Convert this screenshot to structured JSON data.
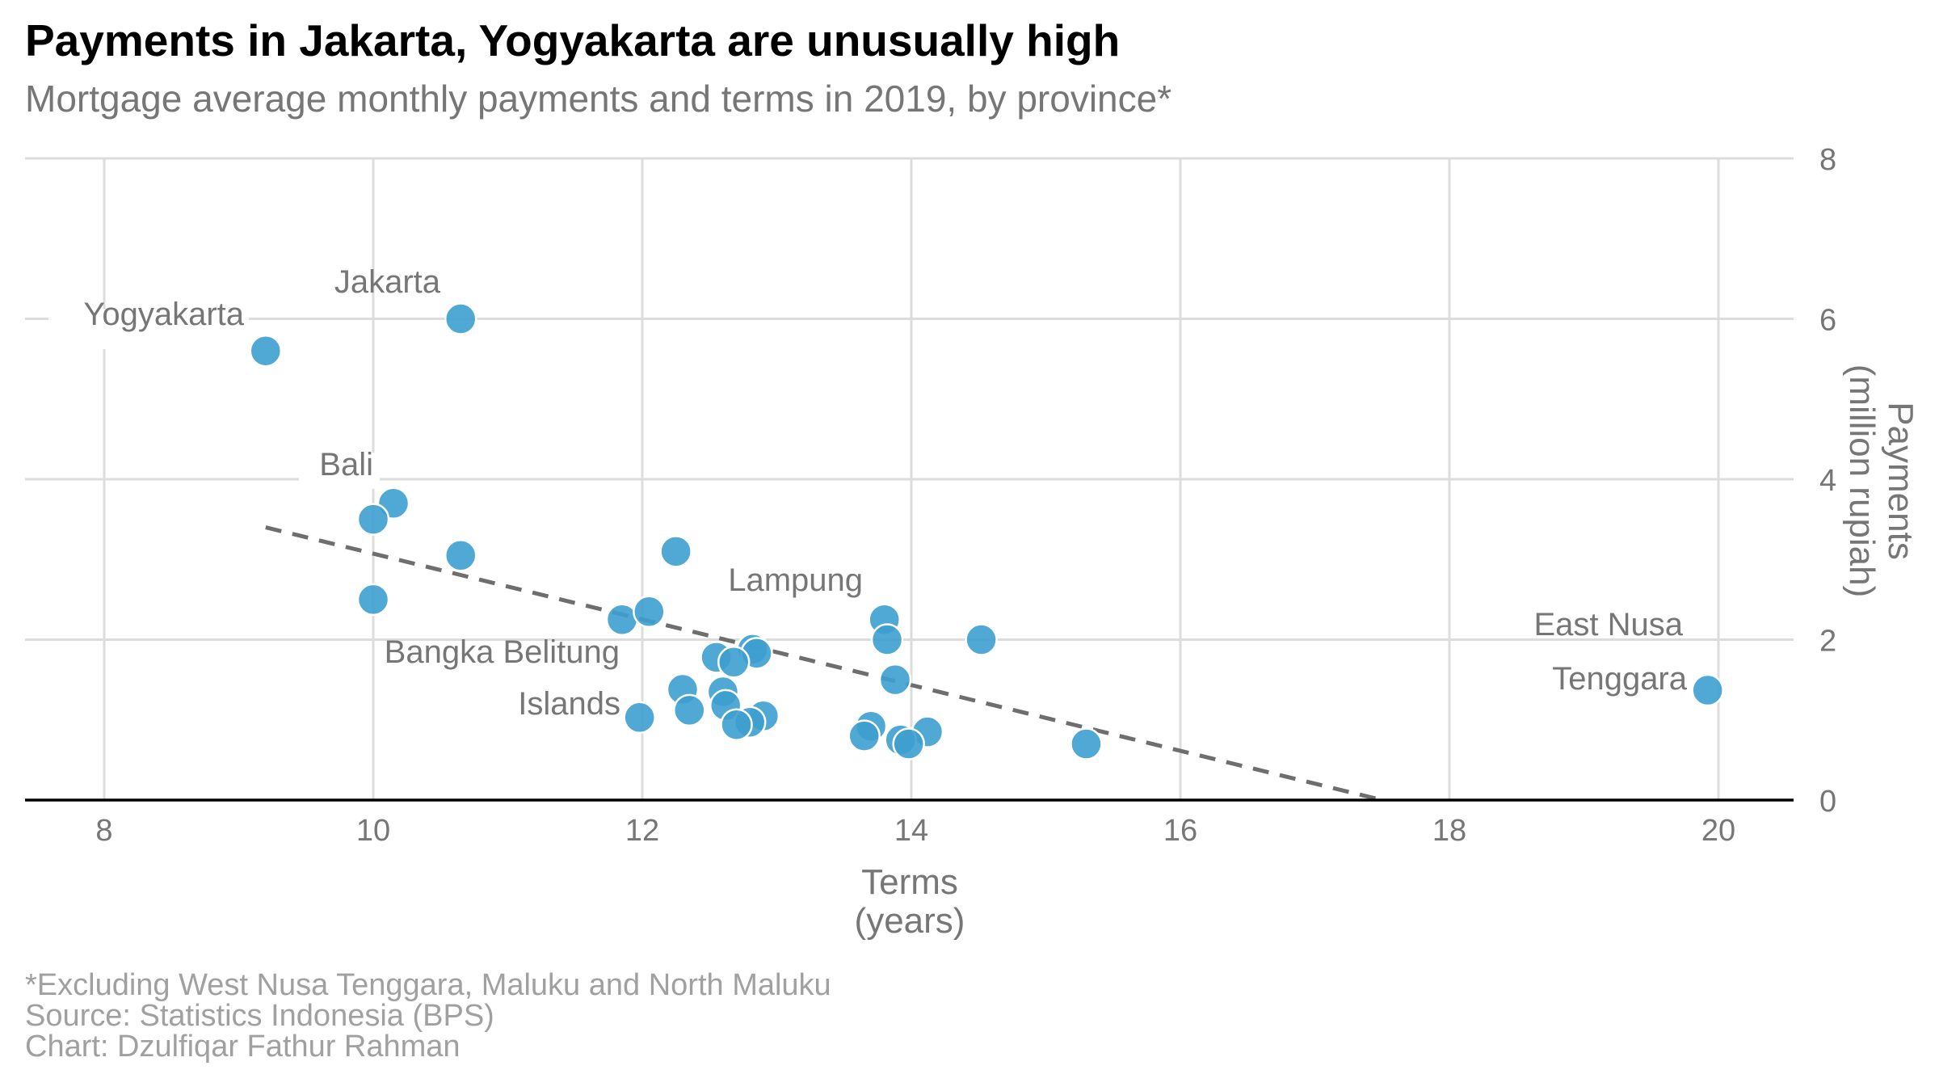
{
  "title": "Payments in Jakarta, Yogyakarta are unusually high",
  "subtitle": "Mortgage average monthly payments and terms in 2019, by province*",
  "footnotes": [
    "*Excluding West Nusa Tenggara, Maluku and North Maluku",
    "Source: Statistics Indonesia (BPS)",
    "Chart: Dzulfiqar Fathur Rahman"
  ],
  "colors": {
    "point": "#3d9fcf",
    "trend": "#6e6e6e",
    "grid": "#dcdcdc",
    "axis_text": "#767676"
  },
  "chart_data": {
    "type": "scatter",
    "title": "Payments in Jakarta, Yogyakarta are unusually high",
    "subtitle": "Mortgage average monthly payments and terms in 2019, by province*",
    "xlabel": [
      "Terms",
      "(years)"
    ],
    "ylabel": [
      "Payments",
      "(million rupiah)"
    ],
    "xlim": [
      7.4,
      20.6
    ],
    "ylim": [
      0,
      8
    ],
    "x_ticks": [
      8,
      10,
      12,
      14,
      16,
      18,
      20
    ],
    "y_ticks": [
      0,
      2,
      4,
      6,
      8
    ],
    "y_axis_position": "right",
    "grid": true,
    "points": [
      {
        "x": 10.65,
        "y": 6.0
      },
      {
        "x": 9.2,
        "y": 5.6
      },
      {
        "x": 10.15,
        "y": 3.7
      },
      {
        "x": 10.0,
        "y": 3.5
      },
      {
        "x": 10.65,
        "y": 3.05
      },
      {
        "x": 10.0,
        "y": 2.5
      },
      {
        "x": 12.25,
        "y": 3.1
      },
      {
        "x": 11.85,
        "y": 2.25
      },
      {
        "x": 12.05,
        "y": 2.35
      },
      {
        "x": 13.8,
        "y": 2.25
      },
      {
        "x": 13.82,
        "y": 2.0
      },
      {
        "x": 14.52,
        "y": 2.0
      },
      {
        "x": 12.82,
        "y": 1.88
      },
      {
        "x": 12.85,
        "y": 1.83
      },
      {
        "x": 12.55,
        "y": 1.78
      },
      {
        "x": 12.68,
        "y": 1.72
      },
      {
        "x": 13.88,
        "y": 1.5
      },
      {
        "x": 12.3,
        "y": 1.38
      },
      {
        "x": 12.6,
        "y": 1.35
      },
      {
        "x": 12.62,
        "y": 1.18
      },
      {
        "x": 12.35,
        "y": 1.12
      },
      {
        "x": 11.98,
        "y": 1.03
      },
      {
        "x": 12.9,
        "y": 1.05
      },
      {
        "x": 12.8,
        "y": 0.97
      },
      {
        "x": 12.7,
        "y": 0.94
      },
      {
        "x": 13.7,
        "y": 0.92
      },
      {
        "x": 14.12,
        "y": 0.85
      },
      {
        "x": 13.65,
        "y": 0.8
      },
      {
        "x": 13.92,
        "y": 0.75
      },
      {
        "x": 13.98,
        "y": 0.7
      },
      {
        "x": 15.3,
        "y": 0.7
      },
      {
        "x": 19.92,
        "y": 1.37
      }
    ],
    "annotations": [
      {
        "text": "Jakarta",
        "x": 10.65,
        "y": 6.0
      },
      {
        "text": "Yogyakarta",
        "x": 9.2,
        "y": 5.6
      },
      {
        "text": "Bali",
        "x": 10.15,
        "y": 3.7
      },
      {
        "text": "Lampung",
        "x": 13.8,
        "y": 2.25
      },
      {
        "text": "Bangka Belitung",
        "x": 11.98,
        "y": 1.03
      },
      {
        "text": "Islands",
        "x": 11.98,
        "y": 1.03
      },
      {
        "text": "East Nusa",
        "x": 19.92,
        "y": 1.37
      },
      {
        "text": "Tenggara",
        "x": 19.92,
        "y": 1.37
      }
    ],
    "trend_line": {
      "x": [
        9.2,
        17.5
      ],
      "y": [
        3.4,
        0.0
      ],
      "style": "dashed"
    }
  }
}
